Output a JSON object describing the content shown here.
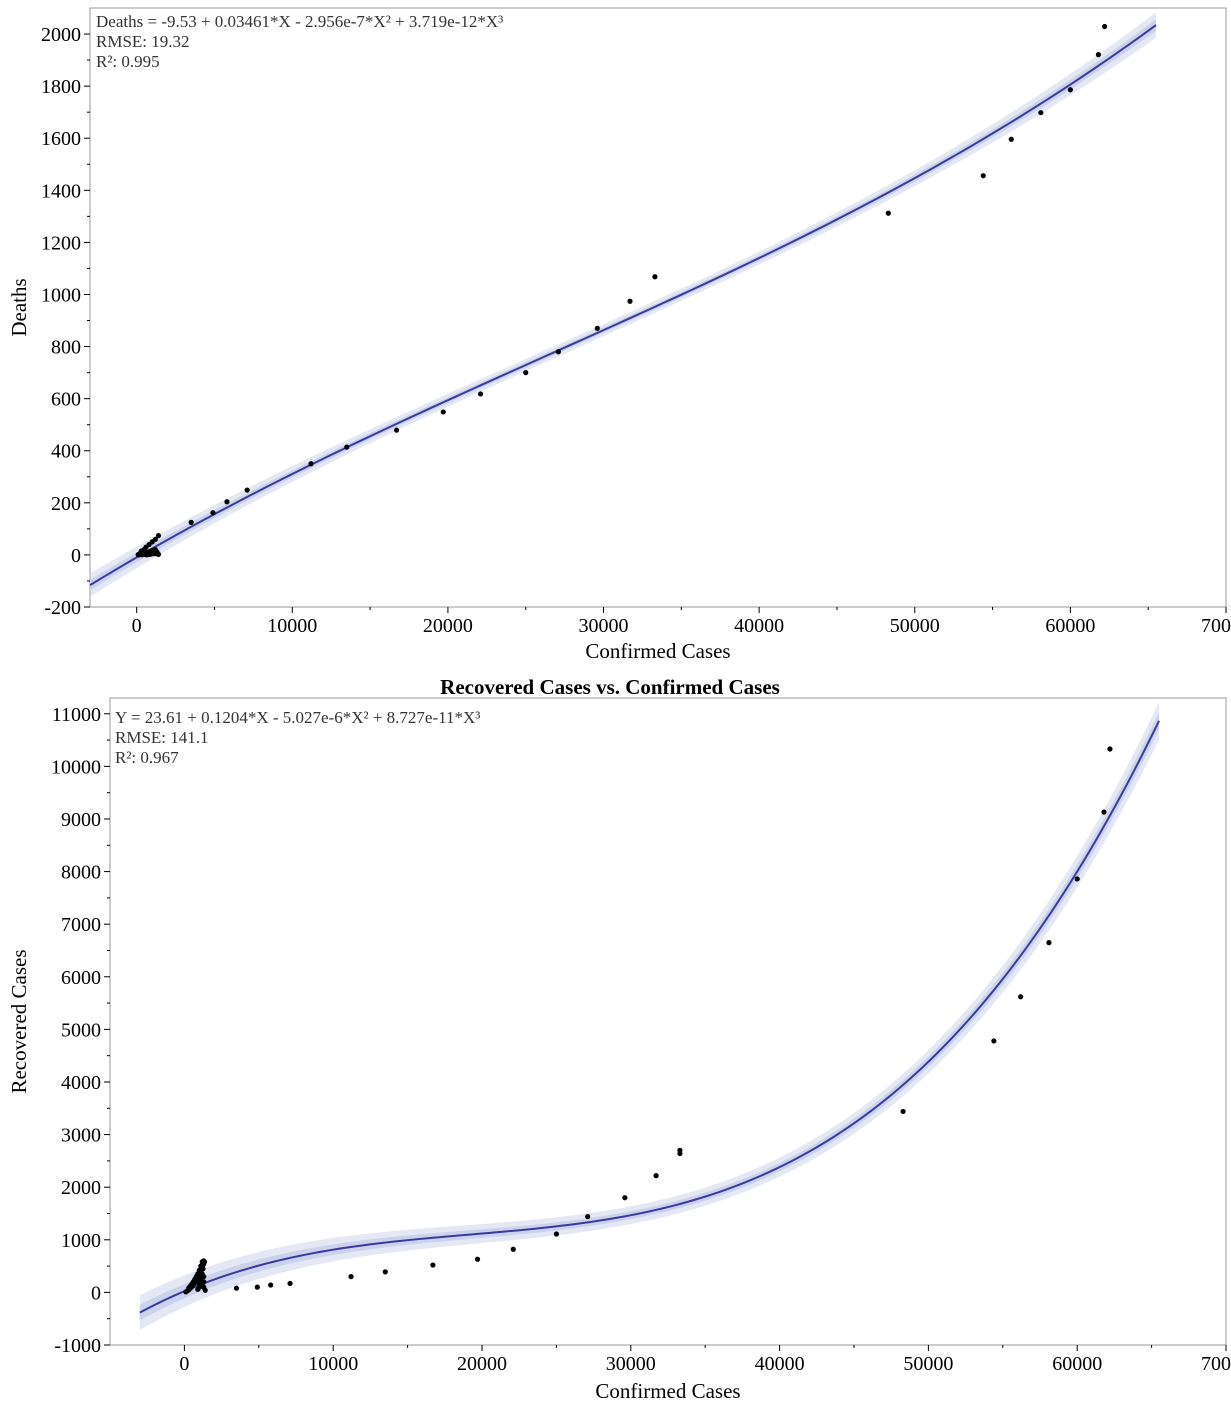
{
  "chart_data": [
    {
      "type": "scatter",
      "title": "",
      "xlabel": "Confirmed Cases",
      "ylabel": "Deaths",
      "xlim": [
        -3000,
        70000
      ],
      "ylim": [
        -200,
        2100
      ],
      "x_ticks": [
        0,
        10000,
        20000,
        30000,
        40000,
        50000,
        60000,
        70000
      ],
      "x_tick_labels": [
        "0",
        "10000",
        "20000",
        "30000",
        "40000",
        "50000",
        "60000",
        "70000"
      ],
      "y_ticks": [
        -200,
        0,
        200,
        400,
        600,
        800,
        1000,
        1200,
        1400,
        1600,
        1800,
        2000
      ],
      "y_tick_labels": [
        "-200",
        "0",
        "200",
        "400",
        "600",
        "800",
        "1000",
        "1200",
        "1400",
        "1600",
        "1800",
        "2000"
      ],
      "annotations": [
        "Deaths = -9.53 + 0.03461*X - 2.956e-7*X² + 3.719e-12*X³",
        "RMSE: 19.32",
        "R²: 0.995"
      ],
      "fit": {
        "coefficients": [
          -9.53,
          0.03461,
          -2.956e-07,
          3.719e-12
        ],
        "x_range": [
          -3000,
          65500
        ],
        "band": 19.32
      },
      "points": [
        [
          3500,
          125
        ],
        [
          4900,
          162
        ],
        [
          5800,
          204
        ],
        [
          7100,
          249
        ],
        [
          11200,
          350
        ],
        [
          13500,
          414
        ],
        [
          16700,
          479
        ],
        [
          19700,
          549
        ],
        [
          22100,
          618
        ],
        [
          25000,
          700
        ],
        [
          27100,
          780
        ],
        [
          29600,
          870
        ],
        [
          31700,
          974
        ],
        [
          33300,
          1068
        ],
        [
          48300,
          1312
        ],
        [
          54400,
          1456
        ],
        [
          56200,
          1596
        ],
        [
          58100,
          1698
        ],
        [
          60000,
          1786
        ],
        [
          61800,
          1921
        ],
        [
          62200,
          2029
        ],
        [
          100,
          1
        ],
        [
          200,
          2
        ],
        [
          300,
          3
        ],
        [
          400,
          5
        ],
        [
          500,
          6
        ],
        [
          600,
          8
        ],
        [
          700,
          10
        ],
        [
          800,
          12
        ],
        [
          900,
          14
        ],
        [
          1000,
          16
        ],
        [
          1100,
          18
        ],
        [
          1200,
          20
        ],
        [
          150,
          0
        ],
        [
          350,
          1
        ],
        [
          550,
          2
        ],
        [
          750,
          3
        ],
        [
          950,
          4
        ],
        [
          1150,
          5
        ],
        [
          1300,
          6
        ],
        [
          1350,
          4
        ],
        [
          1400,
          2
        ],
        [
          1250,
          8
        ],
        [
          1050,
          6
        ],
        [
          850,
          2
        ],
        [
          650,
          0
        ],
        [
          450,
          4
        ],
        [
          250,
          8
        ],
        [
          600,
          30
        ],
        [
          800,
          40
        ],
        [
          1000,
          50
        ],
        [
          1200,
          60
        ],
        [
          1400,
          74
        ],
        [
          300,
          15
        ],
        [
          500,
          22
        ],
        [
          1300,
          12
        ]
      ],
      "colors": {
        "line": "#3a3a9e",
        "band": "#c3cde8",
        "points": "#000000"
      }
    },
    {
      "type": "scatter",
      "title": "Recovered Cases vs. Confirmed Cases",
      "xlabel": "Confirmed Cases",
      "ylabel": "Recovered Cases",
      "xlim": [
        -5000,
        70000
      ],
      "ylim": [
        -1000,
        11300
      ],
      "x_ticks": [
        0,
        10000,
        20000,
        30000,
        40000,
        50000,
        60000,
        70000
      ],
      "x_tick_labels": [
        "0",
        "10000",
        "20000",
        "30000",
        "40000",
        "50000",
        "60000",
        "70000"
      ],
      "y_ticks": [
        -1000,
        0,
        1000,
        2000,
        3000,
        4000,
        5000,
        6000,
        7000,
        8000,
        9000,
        10000,
        11000
      ],
      "y_tick_labels": [
        "-1000",
        "0",
        "1000",
        "2000",
        "3000",
        "4000",
        "5000",
        "6000",
        "7000",
        "8000",
        "9000",
        "10000",
        "11000"
      ],
      "annotations": [
        "Y = 23.61 + 0.1204*X - 5.027e-6*X² + 8.727e-11*X³",
        "RMSE: 141.1",
        "R²: 0.967"
      ],
      "fit": {
        "coefficients": [
          23.61,
          0.1204,
          -5.027e-06,
          8.727e-11
        ],
        "x_range": [
          -3000,
          65500
        ],
        "band": 141.1
      },
      "points": [
        [
          1400,
          40
        ],
        [
          3500,
          80
        ],
        [
          4900,
          100
        ],
        [
          5800,
          140
        ],
        [
          7100,
          170
        ],
        [
          11200,
          300
        ],
        [
          13500,
          390
        ],
        [
          16700,
          520
        ],
        [
          19700,
          630
        ],
        [
          22100,
          820
        ],
        [
          25000,
          1110
        ],
        [
          27100,
          1440
        ],
        [
          29600,
          1800
        ],
        [
          31700,
          2220
        ],
        [
          33300,
          2640
        ],
        [
          33300,
          2700
        ],
        [
          48300,
          3440
        ],
        [
          54400,
          4780
        ],
        [
          56200,
          5620
        ],
        [
          58100,
          6650
        ],
        [
          60000,
          7860
        ],
        [
          61800,
          9130
        ],
        [
          62200,
          10330
        ],
        [
          100,
          10
        ],
        [
          200,
          30
        ],
        [
          300,
          50
        ],
        [
          400,
          80
        ],
        [
          500,
          110
        ],
        [
          600,
          150
        ],
        [
          700,
          190
        ],
        [
          800,
          230
        ],
        [
          900,
          280
        ],
        [
          1000,
          330
        ],
        [
          1100,
          400
        ],
        [
          1200,
          470
        ],
        [
          1300,
          540
        ],
        [
          1300,
          600
        ],
        [
          1200,
          580
        ],
        [
          1100,
          500
        ],
        [
          1000,
          420
        ],
        [
          900,
          350
        ],
        [
          800,
          300
        ],
        [
          700,
          250
        ],
        [
          600,
          200
        ],
        [
          500,
          160
        ],
        [
          400,
          120
        ],
        [
          300,
          90
        ],
        [
          1300,
          300
        ],
        [
          1300,
          200
        ],
        [
          1300,
          100
        ],
        [
          1200,
          150
        ],
        [
          1100,
          250
        ],
        [
          1000,
          100
        ],
        [
          900,
          60
        ],
        [
          1200,
          350
        ],
        [
          1250,
          450
        ],
        [
          1250,
          520
        ],
        [
          1350,
          580
        ],
        [
          1150,
          200
        ],
        [
          950,
          180
        ]
      ],
      "colors": {
        "line": "#3a3a9e",
        "band": "#c3cde8",
        "points": "#000000"
      }
    }
  ]
}
